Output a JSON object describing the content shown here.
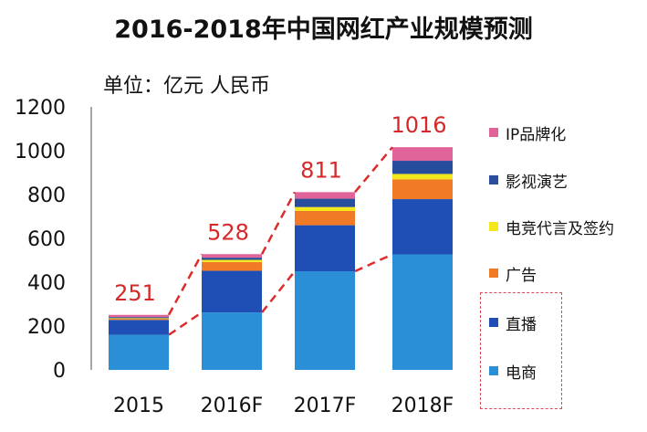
{
  "chart_data": {
    "type": "bar",
    "stacked": true,
    "title": "2016-2018年中国网红产业规模预测",
    "unit_label": "单位：亿元 人民币",
    "categories": [
      "2015",
      "2016F",
      "2017F",
      "2018F"
    ],
    "totals": [
      "251",
      "528",
      "811",
      "1016"
    ],
    "total_values": [
      251,
      528,
      811,
      1016
    ],
    "ylim": [
      0,
      1200
    ],
    "yticks": [
      "0",
      "200",
      "400",
      "600",
      "800",
      "1000",
      "1200"
    ],
    "ytick_values": [
      0,
      200,
      400,
      600,
      800,
      1000,
      1200
    ],
    "grid": false,
    "legend_position": "right",
    "series": [
      {
        "name": "电商",
        "color": "#2b8fd8",
        "values": [
          160,
          262,
          450,
          527
        ]
      },
      {
        "name": "直播",
        "color": "#1f4fb5",
        "values": [
          68,
          190,
          210,
          252
        ]
      },
      {
        "name": "广告",
        "color": "#f07a25",
        "values": [
          5,
          40,
          65,
          90
        ]
      },
      {
        "name": "电竞代言及签约",
        "color": "#f2e81c",
        "values": [
          3,
          10,
          18,
          25
        ]
      },
      {
        "name": "影视演艺",
        "color": "#274d9c",
        "values": [
          5,
          10,
          38,
          60
        ]
      },
      {
        "name": "IP品牌化",
        "color": "#e0649a",
        "values": [
          10,
          16,
          30,
          62
        ]
      }
    ],
    "trend_color": "#dd2b2b",
    "total_label_color": "#d62828"
  }
}
